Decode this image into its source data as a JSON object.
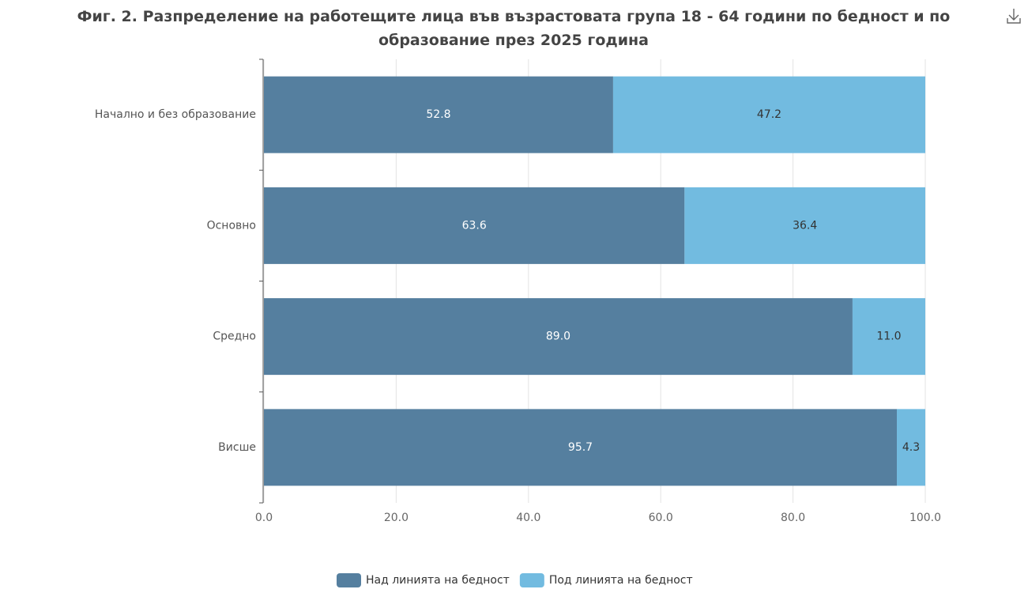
{
  "chart_data": {
    "type": "stacked-horizontal-bar",
    "title": "Фиг. 2. Разпределение на работещите лица във възрастовата група 18 - 64 години по бедност и по образование през 2025 година",
    "categories": [
      "Начално и без образование",
      "Основно",
      "Средно",
      "Висше"
    ],
    "series": [
      {
        "name": "Над линията на бедност",
        "color": "#557f9f",
        "values": [
          52.8,
          63.6,
          89.0,
          95.7
        ],
        "value_labels": [
          "52.8",
          "63.6",
          "89.0",
          "95.7"
        ]
      },
      {
        "name": "Под линията на бедност",
        "color": "#72bbe0",
        "values": [
          47.2,
          36.4,
          11.0,
          4.3
        ],
        "value_labels": [
          "47.2",
          "36.4",
          "11.0",
          "4.3"
        ]
      }
    ],
    "xlim": [
      0,
      100
    ],
    "xticks": [
      {
        "value": 0,
        "label": "0.0"
      },
      {
        "value": 20,
        "label": "20.0"
      },
      {
        "value": 40,
        "label": "40.0"
      },
      {
        "value": 60,
        "label": "60.0"
      },
      {
        "value": 80,
        "label": "80.0"
      },
      {
        "value": 100,
        "label": "100.0"
      }
    ],
    "grid": true,
    "legend": "bottom"
  }
}
